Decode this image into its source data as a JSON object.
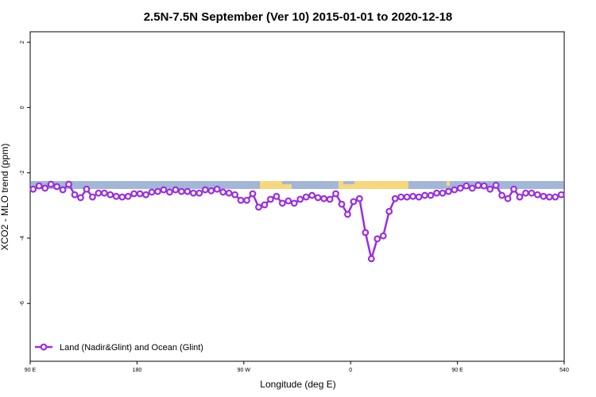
{
  "chart_data": {
    "type": "line",
    "title": "2.5N-7.5N September (Ver 10)   2015-01-01 to 2020-12-18",
    "x_label": "Longitude (deg E)",
    "y_label": "XCO2 - MLO trend (ppm)",
    "xlim": [
      90,
      540
    ],
    "ylim": [
      -7.77,
      2.32
    ],
    "xticks": [
      {
        "value": 90,
        "label": "90 E"
      },
      180,
      {
        "value": 270,
        "label": "90 W"
      },
      {
        "value": 360,
        "label": "0"
      },
      {
        "value": 450,
        "label": "90 E"
      },
      540
    ],
    "yticks": [
      2,
      0,
      -2,
      -4,
      -6
    ],
    "legend": "bottom-left",
    "x": [
      92.5,
      97.5,
      102.5,
      107.5,
      112.5,
      117.5,
      122.5,
      127.5,
      132.5,
      137.5,
      142.5,
      147.5,
      152.5,
      157.5,
      162.5,
      167.5,
      172.5,
      177.5,
      182.5,
      187.5,
      192.5,
      197.5,
      202.5,
      207.5,
      212.5,
      217.5,
      222.5,
      227.5,
      232.5,
      237.5,
      242.5,
      247.5,
      252.5,
      257.5,
      262.5,
      267.5,
      272.5,
      277.5,
      282.5,
      287.5,
      292.5,
      297.5,
      302.5,
      307.5,
      312.5,
      317.5,
      322.5,
      327.5,
      332.5,
      337.5,
      342.5,
      347.5,
      352.5,
      357.5,
      362.5,
      367.5,
      372.5,
      377.5,
      382.5,
      387.5,
      392.5,
      397.5,
      402.5,
      407.5,
      412.5,
      417.5,
      422.5,
      427.5,
      432.5,
      437.5,
      442.5,
      447.5,
      452.5,
      457.5,
      462.5,
      467.5,
      472.5,
      477.5,
      482.5,
      487.5,
      492.5,
      497.5,
      502.5,
      507.5,
      512.5,
      517.5,
      522.5,
      527.5,
      532.5,
      537.5
    ],
    "series": [
      {
        "name": "Land (Nadir&Glint) and Ocean (Glint)",
        "color": "#9a2ee0",
        "values": [
          -2.5,
          -2.4,
          -2.47,
          -2.35,
          -2.42,
          -2.52,
          -2.35,
          -2.67,
          -2.76,
          -2.5,
          -2.74,
          -2.62,
          -2.62,
          -2.67,
          -2.72,
          -2.74,
          -2.72,
          -2.64,
          -2.64,
          -2.67,
          -2.59,
          -2.57,
          -2.52,
          -2.59,
          -2.52,
          -2.57,
          -2.57,
          -2.62,
          -2.62,
          -2.52,
          -2.55,
          -2.5,
          -2.59,
          -2.62,
          -2.67,
          -2.84,
          -2.84,
          -2.64,
          -3.05,
          -2.98,
          -2.81,
          -2.72,
          -2.93,
          -2.86,
          -2.93,
          -2.81,
          -2.74,
          -2.69,
          -2.76,
          -2.79,
          -2.81,
          -2.64,
          -2.96,
          -3.27,
          -2.88,
          -2.79,
          -3.83,
          -4.63,
          -4.02,
          -3.93,
          -3.18,
          -2.79,
          -2.74,
          -2.74,
          -2.72,
          -2.74,
          -2.69,
          -2.69,
          -2.62,
          -2.62,
          -2.57,
          -2.52,
          -2.47,
          -2.4,
          -2.47,
          -2.38,
          -2.4,
          -2.5,
          -2.38,
          -2.69,
          -2.79,
          -2.5,
          -2.74,
          -2.62,
          -2.62,
          -2.67,
          -2.72,
          -2.74,
          -2.74,
          -2.67
        ]
      }
    ]
  }
}
